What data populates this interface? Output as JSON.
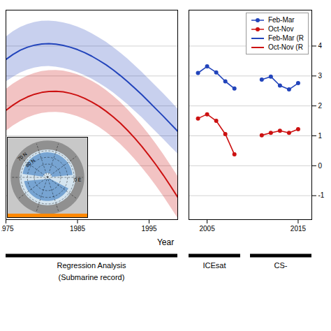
{
  "chart_data": [
    {
      "type": "line",
      "xlabel": "Year",
      "x": [
        1975,
        1976,
        1977,
        1978,
        1979,
        1980,
        1981,
        1982,
        1983,
        1984,
        1985,
        1986,
        1987,
        1988,
        1989,
        1990,
        1991,
        1992,
        1993,
        1994,
        1995,
        1996,
        1997,
        1998,
        1999
      ],
      "xlim": [
        1975,
        1999
      ],
      "xticks": [
        1975,
        1985,
        1995
      ],
      "ylim": [
        -1.8,
        5.2
      ],
      "yticks": [
        -1,
        0,
        1,
        2,
        3,
        4
      ],
      "grid": true,
      "tick_labels": "x",
      "series": [
        {
          "name": "Feb-Mar (R",
          "color": "#2244bb",
          "values": [
            3.55,
            3.72,
            3.86,
            3.96,
            4.03,
            4.07,
            4.08,
            4.06,
            4.02,
            3.96,
            3.88,
            3.78,
            3.66,
            3.52,
            3.37,
            3.2,
            3.01,
            2.81,
            2.59,
            2.37,
            2.13,
            1.89,
            1.65,
            1.4,
            1.15
          ],
          "upper": [
            4.3,
            4.48,
            4.62,
            4.72,
            4.79,
            4.83,
            4.84,
            4.82,
            4.78,
            4.72,
            4.64,
            4.54,
            4.42,
            4.28,
            4.13,
            3.96,
            3.77,
            3.57,
            3.35,
            3.13,
            2.89,
            2.65,
            2.41,
            2.16,
            1.9
          ],
          "lower": [
            2.8,
            2.96,
            3.1,
            3.2,
            3.27,
            3.31,
            3.32,
            3.3,
            3.26,
            3.2,
            3.12,
            3.02,
            2.9,
            2.76,
            2.61,
            2.44,
            2.25,
            2.05,
            1.83,
            1.61,
            1.37,
            1.13,
            0.89,
            0.64,
            0.4
          ]
        },
        {
          "name": "Oct-Nov (R",
          "color": "#cc1111",
          "values": [
            1.85,
            2.03,
            2.18,
            2.3,
            2.39,
            2.45,
            2.48,
            2.49,
            2.47,
            2.42,
            2.35,
            2.25,
            2.13,
            1.99,
            1.82,
            1.63,
            1.42,
            1.18,
            0.92,
            0.64,
            0.34,
            0.02,
            -0.32,
            -0.68,
            -1.05
          ],
          "upper": [
            2.55,
            2.73,
            2.88,
            3.0,
            3.09,
            3.15,
            3.18,
            3.19,
            3.17,
            3.12,
            3.05,
            2.95,
            2.83,
            2.69,
            2.52,
            2.33,
            2.12,
            1.88,
            1.62,
            1.34,
            1.04,
            0.72,
            0.38,
            0.02,
            -0.35
          ],
          "lower": [
            1.15,
            1.33,
            1.48,
            1.6,
            1.69,
            1.75,
            1.78,
            1.79,
            1.77,
            1.72,
            1.65,
            1.55,
            1.43,
            1.29,
            1.12,
            0.93,
            0.72,
            0.48,
            0.22,
            -0.06,
            -0.36,
            -0.68,
            -1.02,
            -1.38,
            -1.75
          ]
        }
      ],
      "annotations": [
        "Regression Analysis",
        "(Submarine record)"
      ],
      "inset_labels": [
        "70 N",
        "80 N",
        "0 E"
      ]
    },
    {
      "type": "line",
      "x": [
        2004,
        2005,
        2006,
        2007,
        2008,
        null,
        2011,
        2012,
        2013,
        2014,
        2015
      ],
      "xlim": [
        2003,
        2016.5
      ],
      "xticks": [
        2005,
        2015
      ],
      "ylim": [
        -1.8,
        5.2
      ],
      "yticks": [
        -1,
        0,
        1,
        2,
        3,
        4
      ],
      "grid": true,
      "legend": "upper right",
      "series": [
        {
          "name": "Feb-Mar",
          "color": "#2244bb",
          "marker": "circle",
          "values": [
            3.1,
            3.32,
            3.12,
            2.82,
            2.58,
            null,
            2.88,
            2.98,
            2.68,
            2.55,
            2.76
          ]
        },
        {
          "name": "Oct-Nov",
          "color": "#cc1111",
          "marker": "circle",
          "values": [
            1.58,
            1.72,
            1.5,
            1.06,
            0.38,
            null,
            1.02,
            1.1,
            1.17,
            1.1,
            1.22
          ]
        }
      ],
      "annotations": [
        "ICEsat",
        "CS-"
      ]
    }
  ]
}
